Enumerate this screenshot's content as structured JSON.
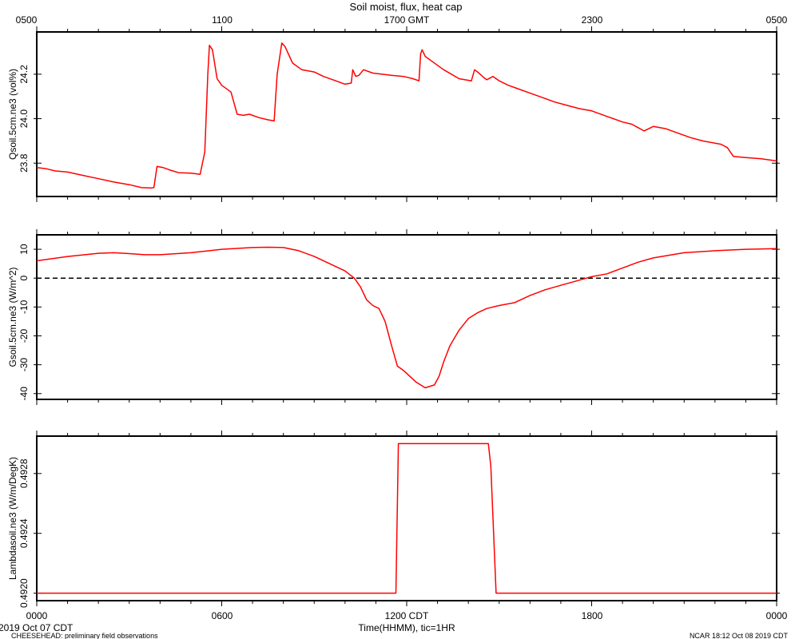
{
  "header": {
    "title": "Soil moist, flux, heat cap",
    "top_ticks": [
      "0500",
      "1100",
      "1700 GMT",
      "2300",
      "0500"
    ]
  },
  "footer": {
    "bottom_ticks": [
      "0000",
      "0600",
      "1200 CDT",
      "1800",
      "0000"
    ],
    "xlabel": "Time(HHMM), tic=1HR",
    "date_label": "2019 Oct 07 CDT",
    "project_label": "CHEESEHEAD: preliminary field observations",
    "credit_label": "NCAR 18:12 Oct 08 2019 CDT"
  },
  "chart_data": [
    {
      "type": "line",
      "ylabel": "Qsoil.5cm.ne3 (vol%)",
      "x_unit": "hours since 0000 CDT",
      "xlim": [
        0,
        24
      ],
      "ylim": [
        23.65,
        24.39
      ],
      "yticks": [
        23.8,
        24.0,
        24.2
      ],
      "ytick_labels": [
        "23.8",
        "24.0",
        "24.2"
      ],
      "series": [
        {
          "color": "#ff0000",
          "x": [
            0,
            0.3,
            0.6,
            1.0,
            1.5,
            2.0,
            2.5,
            3.0,
            3.4,
            3.7,
            3.8,
            3.9,
            4.1,
            4.3,
            4.6,
            5.0,
            5.3,
            5.45,
            5.55,
            5.6,
            5.7,
            5.85,
            6.0,
            6.3,
            6.5,
            6.7,
            6.9,
            7.2,
            7.5,
            7.7,
            7.8,
            7.95,
            8.05,
            8.3,
            8.6,
            9.0,
            9.3,
            9.7,
            10.0,
            10.2,
            10.25,
            10.35,
            10.45,
            10.6,
            10.9,
            11.2,
            11.5,
            11.9,
            12.2,
            12.4,
            12.45,
            12.5,
            12.6,
            12.8,
            13.2,
            13.7,
            14.1,
            14.2,
            14.3,
            14.5,
            14.6,
            14.8,
            15.0,
            15.3,
            15.6,
            16.0,
            16.4,
            16.8,
            17.2,
            17.6,
            18.0,
            18.5,
            19.0,
            19.3,
            19.5,
            19.7,
            20.0,
            20.4,
            20.8,
            21.2,
            21.6,
            22.0,
            22.2,
            22.4,
            22.6,
            23.0,
            23.5,
            24.0
          ],
          "values": [
            23.78,
            23.775,
            23.765,
            23.76,
            23.745,
            23.73,
            23.715,
            23.703,
            23.69,
            23.688,
            23.69,
            23.785,
            23.78,
            23.77,
            23.757,
            23.755,
            23.75,
            23.85,
            24.2,
            24.33,
            24.31,
            24.18,
            24.15,
            24.12,
            24.02,
            24.015,
            24.02,
            24.005,
            23.995,
            23.99,
            24.2,
            24.34,
            24.325,
            24.25,
            24.22,
            24.21,
            24.19,
            24.17,
            24.155,
            24.16,
            24.22,
            24.19,
            24.195,
            24.22,
            24.205,
            24.2,
            24.195,
            24.19,
            24.18,
            24.17,
            24.29,
            24.31,
            24.28,
            24.26,
            24.22,
            24.18,
            24.17,
            24.22,
            24.21,
            24.185,
            24.175,
            24.19,
            24.17,
            24.15,
            24.135,
            24.115,
            24.095,
            24.075,
            24.06,
            24.045,
            24.035,
            24.01,
            23.985,
            23.975,
            23.96,
            23.945,
            23.965,
            23.955,
            23.935,
            23.915,
            23.9,
            23.89,
            23.885,
            23.87,
            23.83,
            23.825,
            23.82,
            23.81
          ]
        }
      ]
    },
    {
      "type": "line",
      "ylabel": "Gsoil.5cm.ne3 (W/m^2)",
      "x_unit": "hours since 0000 CDT",
      "xlim": [
        0,
        24
      ],
      "ylim": [
        -42,
        15
      ],
      "yticks": [
        -40,
        -30,
        -20,
        -10,
        0,
        10
      ],
      "ytick_labels": [
        "-40",
        "-30",
        "-20",
        "-10",
        "0",
        "10"
      ],
      "reference_line": {
        "value": 0,
        "style": "dashed"
      },
      "series": [
        {
          "color": "#ff0000",
          "x": [
            0,
            1,
            2,
            2.5,
            3,
            3.5,
            4,
            5,
            6,
            7,
            7.5,
            8,
            8.5,
            9,
            9.5,
            10,
            10.3,
            10.5,
            10.7,
            10.9,
            11.1,
            11.3,
            11.5,
            11.7,
            11.9,
            12.1,
            12.3,
            12.6,
            12.9,
            13.05,
            13.2,
            13.4,
            13.7,
            14.0,
            14.3,
            14.6,
            15.0,
            15.5,
            16.0,
            16.5,
            17.0,
            17.5,
            18.0,
            18.5,
            19.0,
            19.5,
            20.0,
            21.0,
            22.0,
            23.0,
            24.0
          ],
          "values": [
            6.0,
            7.5,
            8.6,
            8.8,
            8.5,
            8.1,
            8.1,
            8.8,
            10.0,
            10.6,
            10.7,
            10.6,
            9.5,
            7.5,
            5.0,
            2.5,
            0.0,
            -3.0,
            -7.5,
            -9.5,
            -10.5,
            -15.0,
            -23.0,
            -30.5,
            -32.0,
            -34.0,
            -36.0,
            -38.0,
            -37.0,
            -34.0,
            -29.0,
            -23.5,
            -18.0,
            -14.0,
            -12.0,
            -10.5,
            -9.5,
            -8.5,
            -6.0,
            -4.0,
            -2.5,
            -1.0,
            0.5,
            1.5,
            3.5,
            5.5,
            7.0,
            8.8,
            9.5,
            10.0,
            10.2
          ]
        }
      ]
    },
    {
      "type": "line",
      "ylabel": "Lambdasoil.ne3 (W/m/DegK)",
      "x_unit": "hours since 0000 CDT",
      "xlim": [
        0,
        24
      ],
      "ylim": [
        0.49195,
        0.49305
      ],
      "yticks": [
        0.492,
        0.4924,
        0.4928
      ],
      "ytick_labels": [
        "0.4920",
        "0.4924",
        "0.4928"
      ],
      "series": [
        {
          "color": "#ff0000",
          "x": [
            0,
            11.65,
            11.73,
            14.65,
            14.73,
            14.9,
            24.0
          ],
          "values": [
            0.492,
            0.492,
            0.493,
            0.493,
            0.49285,
            0.492,
            0.492
          ]
        }
      ]
    }
  ]
}
